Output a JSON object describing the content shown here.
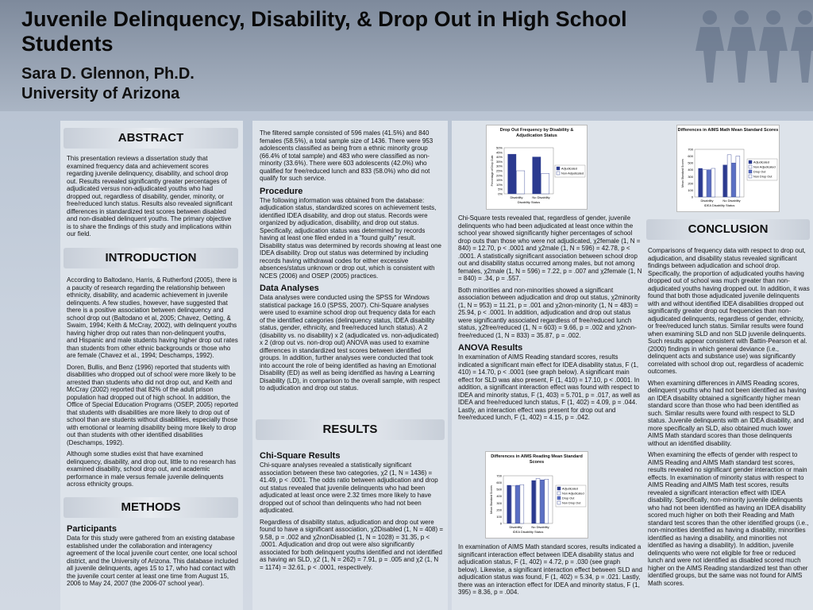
{
  "header": {
    "title": "Juvenile Delinquency, Disability, & Drop Out in High School Students",
    "author": "Sara D. Glennon, Ph.D.",
    "institution": "University of Arizona"
  },
  "abstract": {
    "heading": "ABSTRACT",
    "text": "This presentation reviews a dissertation study that examined frequency data and achievement scores regarding juvenile delinquency, disability, and school drop out. Results revealed significantly greater percentages of adjudicated versus non-adjudicated youths who had dropped out, regardless of disability, gender, minority, or free/reduced lunch status. Results also revealed significant differences in standardized test scores between disabled and non-disabled delinquent youths. The primary objective is to share the findings of this study and implications within our field."
  },
  "introduction": {
    "heading": "INTRODUCTION",
    "p1": "According to Baltodano, Harris, & Rutherford (2005), there is a paucity of research regarding the relationship between ethnicity, disability, and academic achievement in juvenile delinquents. A few studies, however, have suggested that there is a positive association between delinquency and school drop out (Baltodano et al, 2005; Chavez, Oetting, & Swaim, 1994; Keith & McCray, 2002), with delinquent youths having higher drop out rates than non-delinquent youths, and Hispanic and male students having higher drop out rates than students from other ethnic backgrounds or those who are female (Chavez et al., 1994; Deschamps, 1992).",
    "p2": "Doren, Bullis, and Benz (1996) reported that students with disabilities who dropped out of school were more likely to be arrested than students who did not drop out, and Keith and McCray (2002) reported that 82% of the adult prison population had dropped out of high school. In addition, the Office of Special Education Programs (OSEP, 2005) reported that students with disabilities are more likely to drop out of school than are students without disabilities, especially those with emotional or learning disability being more likely to drop out than students with other identified disabilities (Deschamps, 1992).",
    "p3": "Although some studies exist that have examined delinquency, disability, and drop out, little to no research has examined disability, school drop out, and academic performance in male versus female juvenile delinquents across ethnicity groups."
  },
  "methods": {
    "heading": "METHODS",
    "participants_heading": "Participants",
    "participants_text": "Data for this study were gathered from an existing database established under the collaboration and interagency agreement of the local juvenile court center, one local school district, and the University of Arizona. This database included all juvenile delinquents, ages 15 to 17, who had contact with the juvenile court center at least one time from August 15, 2006 to May 24, 2007 (the 2006-07 school year).",
    "sample_text": "The filtered sample consisted of 596 males (41.5%) and 840 females (58.5%), a total sample size of 1436. There were 953 adolescents classified as being from a ethnic minority group (66.4% of total sample) and 483 who were classified as non-minority (33.6%). There were 603 adolescents (42.0%) who qualified for free/reduced lunch and 833 (58.0%) who did not qualify for such service.",
    "procedure_heading": "Procedure",
    "procedure_text": "The following information was obtained from the database: adjudication status, standardized scores on achievement tests, identified IDEA disability, and drop out status. Records were organized by adjudication, disability, and drop out status. Specifically, adjudication status was determined by records having at least one filed ended in a \"found guilty\" result. Disability status was determined by records showing at least one IDEA disability. Drop out status was determined by including records having withdrawal codes for either excessive absences/status unknown or drop out, which is consistent with NCES (2006) and OSEP (2005) practices.",
    "analyses_heading": "Data Analyses",
    "analyses_text": "Data analyses were conducted using the SPSS for Windows statistical package 16.0 (SPSS, 2007). Chi-Square analyses were used to examine school drop out frequency data for each of the identified categories (delinquency status, IDEA disability status, gender, ethnicity, and free/reduced lunch status). A 2 (disability vs. no disability) x 2 (adjudicated vs. non-adjudicated) x 2 (drop out vs. non-drop out) ANOVA was used to examine differences in standardized test scores between identified groups. In addition, further analyses were conducted that took into account the role of being identified as having an Emotional Disability (ED) as well as being identified as having a Learning Disability (LD), in comparison to the overall sample, with respect to adjudication and drop out status."
  },
  "results": {
    "heading": "RESULTS",
    "chi_heading": "Chi-Square Results",
    "chi_p1": "Chi-square analyses revealed a statistically significant association between these two categories, χ2 (1, N = 1436) = 41.49, p < .0001. The odds ratio between adjudication and drop out status revealed that juvenile delinquents who had been adjudicated at least once were 2.32 times more likely to have dropped out of school than delinquents who had not been adjudicated.",
    "chi_p2": "Regardless of disability status, adjudication and drop out were found to have a significant association, χ2Disabled (1, N = 408) = 9.58, p = .002 and χ2nonDisabled (1, N = 1028) = 31.35, p < .0001. Adjudication and drop out were also significantly associated for both delinquent youths identified and not identified as having an SLD, χ2 (1, N = 262) = 7.91, p = .005 and χ2 (1, N = 1174) = 32.61, p < .0001, respectively.",
    "chi_p3": "Chi-Square tests revealed that, regardless of gender, juvenile delinquents who had been adjudicated at least once within the school year showed significantly higher percentages of school drop outs than those who were not adjudicated, χ2female (1, N = 840) = 12.70, p < .0001 and χ2male (1, N = 596) = 42.78, p < .0001. A statistically significant association between school drop out and disability status occurred among males, but not among females, χ2male (1, N = 596) = 7.22, p = .007 and χ2female (1, N = 840) = .34, p = .557.",
    "chi_p4": "Both minorities and non-minorities showed a significant association between adjudication and drop out status, χ2minority (1, N = 953) = 11.21, p = .001 and χ2non-minority (1, N = 483) = 25.94, p < .0001. In addition, adjudication and drop out status were significantly associated regardless of free/reduced lunch status, χ2free/reduced (1, N = 603) = 9.66, p = .002 and χ2non-free/reduced (1, N = 833) = 35.87, p = .002.",
    "anova_heading": "ANOVA Results",
    "anova_p1": "In examination of AIMS Reading standard scores, results indicated a significant main effect for IDEA disability status, F (1, 410) = 14.70, p < .0001 (see graph below). A significant main effect for SLD was also present, F (1, 410) = 17.10, p < .0001. In addition, a significant interaction effect was found with respect to IDEA and minority status, F (1, 403) = 5.701, p = .017, as well as IDEA and free/reduced lunch status, F (1, 402) = 4.09, p = .044. Lastly, an interaction effect was present for drop out and free/reduced lunch, F (1, 402) = 4.15, p = .042.",
    "anova_p2": "In examination of AIMS Math standard scores, results indicated a significant interaction effect between IDEA disability status and adjudication status, F (1, 402) = 4.72, p = .030 (see graph below). Likewise, a significant interaction effect between SLD and adjudication status was found, F (1, 402) = 5.34, p = .021. Lastly, there was an interaction effect for IDEA and minority status, F (1, 395) = 8.36, p = .004."
  },
  "conclusion": {
    "heading": "CONCLUSION",
    "p1": "Comparisons of frequency data with respect to drop out, adjudication, and disability status revealed significant findings between adjudication and school drop. Specifically, the proportion of adjudicated youths having dropped out of school was much greater than non-adjudicated youths having dropped out. In addition, it was found that both those adjudicated juvenile delinquents with and without identified IDEA disabilities dropped out significantly greater drop out frequencies than non-adjudicated delinquents, regardless of gender, ethnicity, or free/reduced lunch status. Similar results were found when examining SLD and non SLD juvenile delinquents. Such results appear consistent with Battin-Pearson et al. (2000) findings in which general deviance (i.e., delinquent acts and substance use) was significantly correlated with school drop out, regardless of academic outcomes.",
    "p2": "When examining differences in AIMS Reading scores, delinquent youths who had not been identified as having an IDEA disability obtained a significantly higher mean standard score than those who had been identified as such. Similar results were found with respect to SLD status. Juvenile delinquents with an IDEA disability, and more specifically an SLD, also obtained much lower AIMS Math standard scores than those delinquents without an identified disability.",
    "p3": "When examining the effects of gender with respect to AIMS Reading and AIMS Math standard test scores, results revealed no significant gender interaction or main effects. In examination of minority status with respect to AIMS Reading and AIMS Math test scores, results revealed a significant interaction effect with IDEA disability. Specifically, non-minority juvenile delinquents who had not been identified as having an IDEA disability scored much higher on both their Reading and Math standard test scores than the other identified groups (i.e., non-minorities identified as having a disability, minorities identified as having a disability, and minorities not identified as having a disability). In addition, juvenile delinquents who were not eligible for free or reduced lunch and were not identified as disabled scored much higher on the AIMS Reading standardized test than other identified groups, but the same was not found for AIMS Math scores."
  },
  "chart_data": [
    {
      "type": "bar",
      "title": "Drop Out Frequency by Disability & Adjudication Status",
      "categories": [
        "Disability",
        "No Disability"
      ],
      "xlabel": "Disability Status",
      "ylabel": "Percentage of Drop Outs",
      "ylim": [
        0,
        50
      ],
      "yticks": [
        "0%",
        "5%",
        "10%",
        "15%",
        "20%",
        "25%",
        "30%",
        "35%",
        "40%",
        "45%",
        "50%"
      ],
      "series": [
        {
          "name": "Adjudicated",
          "values": [
            43,
            40
          ],
          "color": "#2b3a8f"
        },
        {
          "name": "Non-Adjudicated",
          "values": [
            25,
            22
          ],
          "color": "#ffffff"
        }
      ]
    },
    {
      "type": "bar",
      "title": "Differences in AIMS Math Mean Standard Scores",
      "categories": [
        "Disability",
        "No Disability"
      ],
      "xlabel": "IDEA Disability Status",
      "ylabel": "Mean Standard Scores",
      "ylim": [
        0,
        700
      ],
      "yticks": [
        "0",
        "100",
        "200",
        "300",
        "400",
        "500",
        "600",
        "700"
      ],
      "series": [
        {
          "name": "Adjudicated",
          "values": [
            420,
            470
          ],
          "color": "#2b3a8f"
        },
        {
          "name": "Non Adjudicated",
          "values": [
            400,
            620
          ],
          "color": "#ffffff"
        },
        {
          "name": "Drop Out",
          "values": [
            400,
            500
          ],
          "color": "#5a6fc4"
        },
        {
          "name": "Non Drop Out",
          "values": [
            420,
            600
          ],
          "color": "#ffffff"
        }
      ]
    },
    {
      "type": "bar",
      "title": "Differences in AIMS Reading Mean Standard Scores",
      "categories": [
        "Disability",
        "No Disability"
      ],
      "xlabel": "IDEA Disability Status",
      "ylabel": "Mean Standard Scores",
      "ylim": [
        0,
        700
      ],
      "yticks": [
        "0",
        "100",
        "200",
        "300",
        "400",
        "500",
        "600",
        "700"
      ],
      "series": [
        {
          "name": "Adjudicated",
          "values": [
            560,
            630
          ],
          "color": "#2b3a8f"
        },
        {
          "name": "Non Adjudicated",
          "values": [
            550,
            660
          ],
          "color": "#ffffff"
        },
        {
          "name": "Drop Out",
          "values": [
            560,
            640
          ],
          "color": "#5a6fc4"
        },
        {
          "name": "Non Drop Out",
          "values": [
            570,
            650
          ],
          "color": "#ffffff"
        }
      ]
    }
  ]
}
